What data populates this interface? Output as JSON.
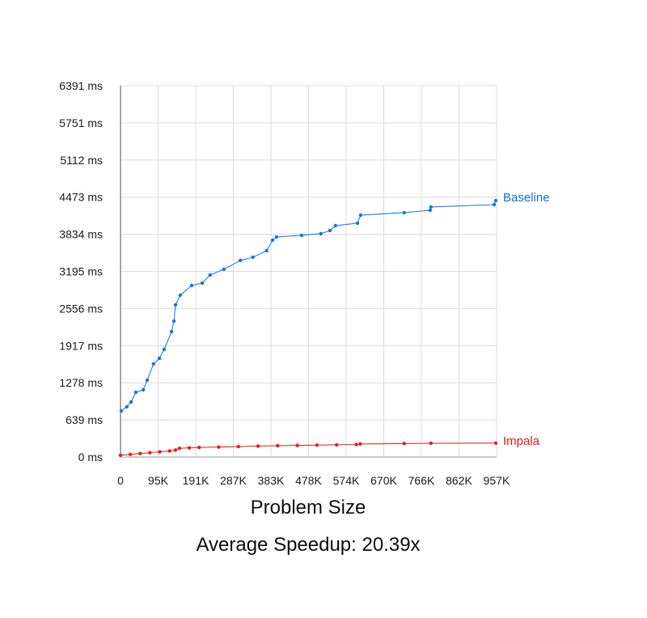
{
  "chart_data": {
    "type": "line",
    "title": "",
    "xlabel": "Problem Size",
    "ylabel": "",
    "subtitle": "Average Speedup: 20.39x",
    "xlim": [
      0,
      957
    ],
    "ylim": [
      0,
      6391
    ],
    "x_unit": "K",
    "y_unit": "ms",
    "grid": true,
    "legend": "inline-right",
    "x_ticks": [
      "0",
      "95K",
      "191K",
      "287K",
      "383K",
      "478K",
      "574K",
      "670K",
      "766K",
      "862K",
      "957K"
    ],
    "y_ticks": [
      "0 ms",
      "639 ms",
      "1278 ms",
      "1917 ms",
      "2556 ms",
      "3195 ms",
      "3834 ms",
      "4473 ms",
      "5112 ms",
      "5751 ms",
      "6391 ms"
    ],
    "series": [
      {
        "name": "Baseline",
        "color": "#1a73e8",
        "x": [
          2,
          16,
          27,
          39,
          58,
          68,
          84,
          99,
          111,
          130,
          136,
          140,
          152,
          181,
          208,
          228,
          263,
          305,
          337,
          372,
          387,
          397,
          461,
          510,
          533,
          547,
          603,
          611,
          722,
          788,
          790,
          951,
          955
        ],
        "y": [
          794,
          864,
          947,
          1114,
          1156,
          1323,
          1602,
          1699,
          1852,
          2159,
          2340,
          2618,
          2785,
          2953,
          2994,
          3134,
          3231,
          3384,
          3440,
          3551,
          3733,
          3788,
          3816,
          3844,
          3900,
          3983,
          4025,
          4164,
          4206,
          4248,
          4304,
          4345,
          4415
        ]
      },
      {
        "name": "Impala",
        "color": "#e8201a",
        "x": [
          0,
          25,
          50,
          75,
          100,
          125,
          140,
          150,
          175,
          200,
          250,
          300,
          350,
          400,
          450,
          500,
          550,
          600,
          610,
          722,
          790,
          955
        ],
        "y": [
          30,
          45,
          60,
          75,
          90,
          105,
          120,
          150,
          158,
          165,
          172,
          180,
          188,
          195,
          200,
          205,
          210,
          215,
          225,
          232,
          237,
          240
        ]
      }
    ]
  }
}
